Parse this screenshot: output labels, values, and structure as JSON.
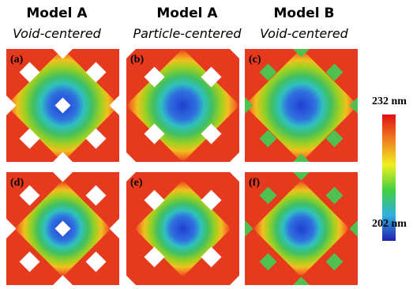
{
  "columns": [
    {
      "model": "Model A",
      "center": "Void-centered"
    },
    {
      "model": "Model A",
      "center": "Particle-centered"
    },
    {
      "model": "Model B",
      "center": "Void-centered"
    }
  ],
  "panels": [
    "(a)",
    "(b)",
    "(c)",
    "(d)",
    "(e)",
    "(f)"
  ],
  "colorbar": {
    "max": "232 nm",
    "min": "202 nm"
  }
}
